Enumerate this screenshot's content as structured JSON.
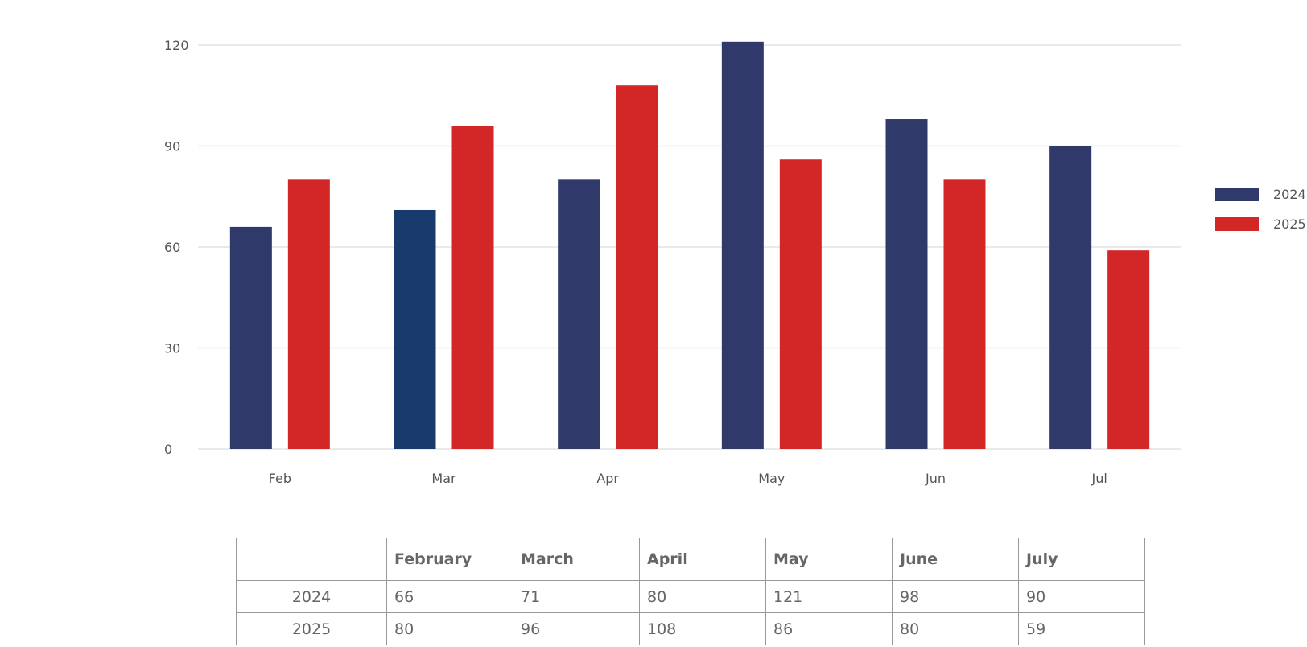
{
  "chart_data": {
    "type": "bar",
    "categories": [
      "Feb",
      "Mar",
      "Apr",
      "May",
      "Jun",
      "Jul"
    ],
    "series": [
      {
        "name": "2024",
        "values": [
          66,
          71,
          80,
          121,
          98,
          90
        ],
        "color": "#2f3a6b"
      },
      {
        "name": "2025",
        "values": [
          80,
          96,
          108,
          86,
          80,
          59
        ],
        "color": "#d32626"
      }
    ],
    "highlight_colors": {
      "Mar-2024": "#183a6d"
    },
    "ylim": [
      0,
      120
    ],
    "yticks": [
      0,
      30,
      60,
      90,
      120
    ],
    "grid": true,
    "legend": "right"
  },
  "table": {
    "headers": [
      "",
      "February",
      "March",
      "April",
      "May",
      "June",
      "July"
    ],
    "rows": [
      {
        "label": "2024",
        "values": [
          "66",
          "71",
          "80",
          "121",
          "98",
          "90"
        ]
      },
      {
        "label": "2025",
        "values": [
          "80",
          "96",
          "108",
          "86",
          "80",
          "59"
        ]
      }
    ]
  }
}
